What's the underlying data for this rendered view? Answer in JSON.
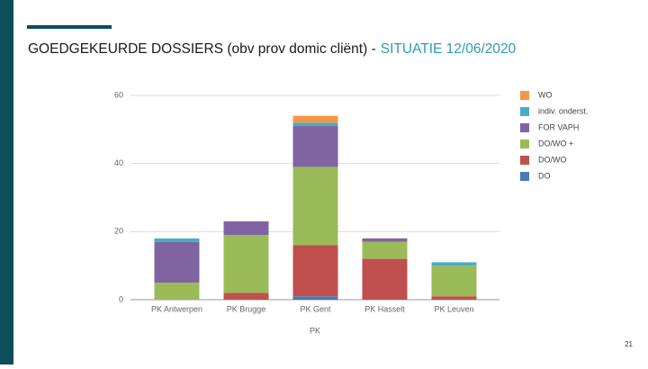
{
  "chart_data": {
    "type": "stacked_bar",
    "title": "GOEDGEKEURDE DOSSIERS (obv prov domic cliënt) -",
    "subtitle": "SITUATIE 12/06/2020",
    "x_label": "PK",
    "categories": [
      "PK Antwerpen",
      "PK Brugge",
      "PK Gent",
      "PK Hasselt",
      "PK Leuven"
    ],
    "series": [
      {
        "name": "DO",
        "color": "#4a7ab8",
        "values": [
          0,
          0,
          1,
          0,
          0
        ]
      },
      {
        "name": "DO/WO",
        "color": "#c0504d",
        "values": [
          0,
          2,
          15,
          12,
          1
        ]
      },
      {
        "name": "DO/WO +",
        "color": "#9bbb59",
        "values": [
          5,
          17,
          23,
          5,
          9
        ]
      },
      {
        "name": "FOR VAPH",
        "color": "#8064a2",
        "values": [
          12,
          4,
          12,
          1,
          0
        ]
      },
      {
        "name": "indiv. onderst.",
        "color": "#4bacc6",
        "values": [
          1,
          0,
          1,
          0,
          1
        ]
      },
      {
        "name": "WO",
        "color": "#f79646",
        "values": [
          0,
          0,
          2,
          0,
          0
        ]
      }
    ],
    "ylim": [
      0,
      60
    ],
    "yticks": [
      0,
      20,
      40,
      60
    ],
    "grid": true,
    "legend": "right"
  },
  "slide": {
    "page_number": "21"
  }
}
